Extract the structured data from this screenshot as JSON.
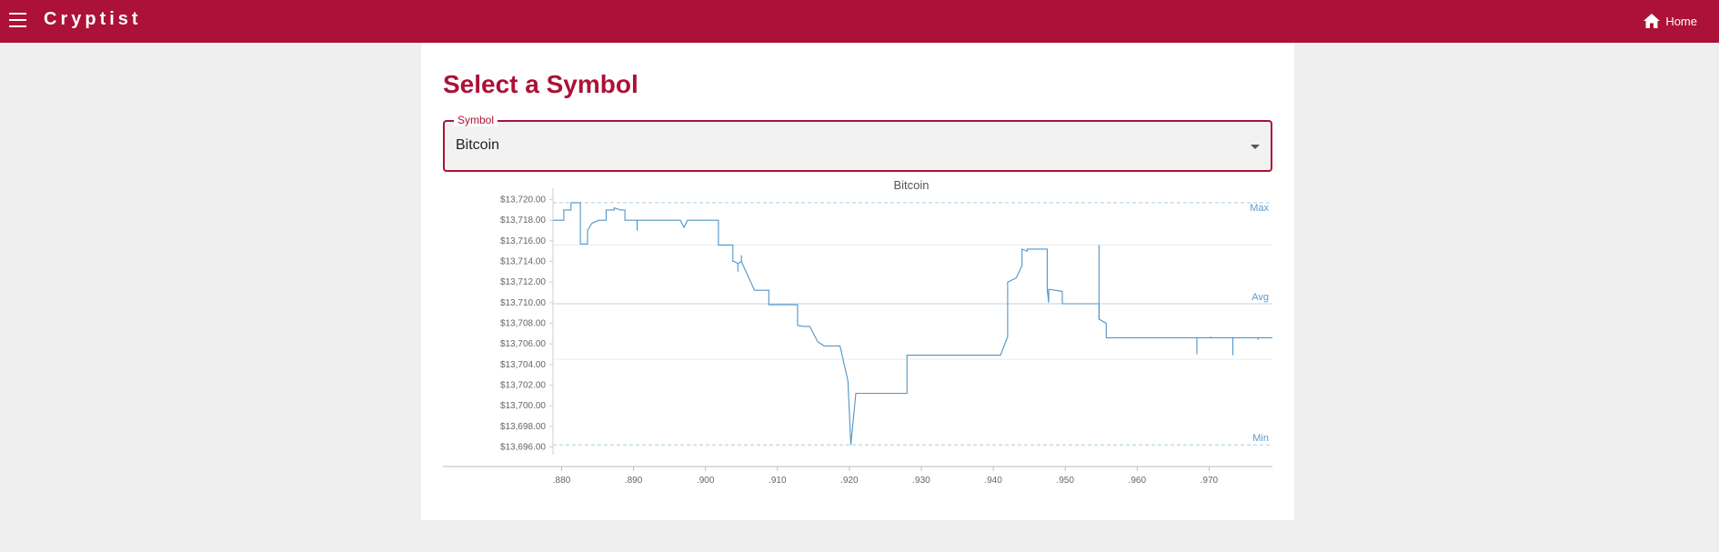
{
  "appbar": {
    "brand": "Cryptist",
    "home_label": "Home",
    "color": "#ac1137"
  },
  "main": {
    "title": "Select a Symbol",
    "select": {
      "label": "Symbol",
      "value": "Bitcoin"
    }
  },
  "icons": [
    "menu-icon",
    "home-icon",
    "dropdown-arrow-icon"
  ],
  "chart_data": {
    "type": "line",
    "title": "Bitcoin",
    "ylim": [
      13695.6,
      13720.4
    ],
    "xlim": [
      0.8788,
      0.9788
    ],
    "yticks": [
      13720,
      13718,
      13716,
      13714,
      13712,
      13710,
      13708,
      13706,
      13704,
      13702,
      13700,
      13698,
      13696
    ],
    "ytick_labels": [
      "$13,720.00",
      "$13,718.00",
      "$13,716.00",
      "$13,714.00",
      "$13,712.00",
      "$13,710.00",
      "$13,708.00",
      "$13,706.00",
      "$13,704.00",
      "$13,702.00",
      "$13,700.00",
      "$13,698.00",
      "$13,696.00"
    ],
    "xticks": [
      0.88,
      0.89,
      0.9,
      0.91,
      0.92,
      0.93,
      0.94,
      0.95,
      0.96,
      0.97
    ],
    "xtick_labels": [
      ".880",
      ".890",
      ".900",
      ".910",
      ".920",
      ".930",
      ".940",
      ".950",
      ".960",
      ".970"
    ],
    "reference_lines": [
      {
        "label": "Max",
        "value": 13719.7,
        "style": "dashed"
      },
      {
        "label": "Avg",
        "value": 13709.9,
        "style": "solid"
      },
      {
        "label": "Min",
        "value": 13696.2,
        "style": "dashed"
      }
    ],
    "grid_values": [
      13715.6,
      13704.5
    ],
    "line_color": "#4f95c8",
    "series": [
      {
        "x": [
          0.8788,
          0.8803,
          0.8803,
          0.8813,
          0.8813,
          0.8826,
          0.8826,
          0.8836,
          0.8836,
          0.8842,
          0.8852,
          0.8862,
          0.8862,
          0.8873,
          0.8873,
          0.8882,
          0.8888,
          0.8888,
          0.8905,
          0.8905,
          0.8905,
          0.8965,
          0.897,
          0.8975,
          0.8975,
          0.9018,
          0.9018,
          0.9038,
          0.9038,
          0.904,
          0.9045,
          0.905,
          0.905,
          0.9068,
          0.9068,
          0.9088,
          0.9088,
          0.9128,
          0.9128,
          0.9136,
          0.9145,
          0.9145,
          0.9156,
          0.9165,
          0.9187,
          0.9198,
          0.9202,
          0.9209,
          0.921,
          0.921,
          0.928,
          0.928,
          0.941,
          0.942,
          0.942,
          0.9432,
          0.944,
          0.944,
          0.9447,
          0.9447,
          0.9475,
          0.9475,
          0.9477,
          0.9477,
          0.9496,
          0.9496,
          0.9547,
          0.9547,
          0.9557,
          0.9557,
          0.9788
        ],
        "y": [
          13718.0,
          13718.0,
          13719.0,
          13719.0,
          13719.7,
          13719.7,
          13715.7,
          13715.7,
          13717.0,
          13717.7,
          13718.0,
          13718.0,
          13719.0,
          13719.0,
          13719.2,
          13719.0,
          13719.0,
          13718.0,
          13718.0,
          13717.0,
          13718.0,
          13718.0,
          13717.3,
          13718.0,
          13718.0,
          13718.0,
          13715.6,
          13715.6,
          13714.0,
          13714.0,
          13713.8,
          13714.0,
          13714.0,
          13711.2,
          13711.2,
          13711.2,
          13709.8,
          13709.8,
          13707.8,
          13707.7,
          13707.7,
          13707.7,
          13706.2,
          13705.8,
          13705.8,
          13702.4,
          13696.2,
          13701.2,
          13701.2,
          13701.2,
          13701.2,
          13704.9,
          13704.9,
          13706.7,
          13712.0,
          13712.4,
          13713.6,
          13715.2,
          13715.0,
          13715.2,
          13715.2,
          13711.3,
          13710.0,
          13711.3,
          13711.1,
          13709.9,
          13709.9,
          13708.4,
          13708.0,
          13706.6,
          13706.6
        ]
      }
    ],
    "spikes": [
      {
        "x": 0.8905,
        "y": 13717.0
      },
      {
        "x": 0.9045,
        "y": 13713.0
      },
      {
        "x": 0.905,
        "y": 13714.6
      },
      {
        "x": 0.9547,
        "y": 13715.6
      },
      {
        "x": 0.9683,
        "y": 13705.0
      },
      {
        "x": 0.9702,
        "y": 13706.7
      },
      {
        "x": 0.9733,
        "y": 13704.9
      },
      {
        "x": 0.9768,
        "y": 13706.4
      }
    ]
  }
}
